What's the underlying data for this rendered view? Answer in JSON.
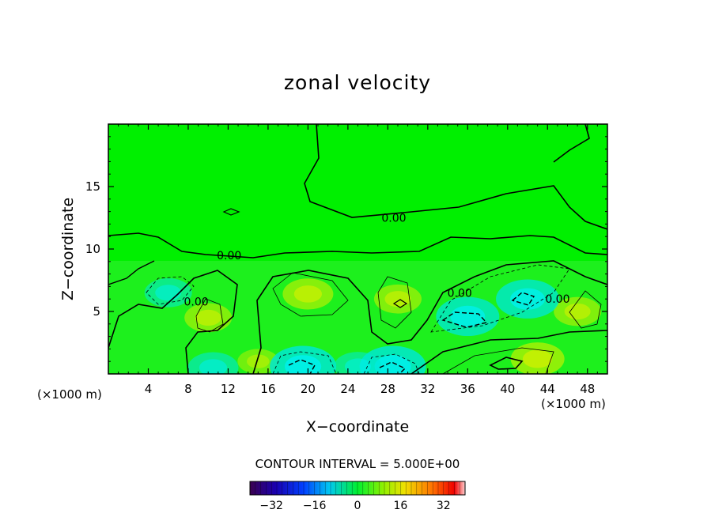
{
  "chart_data": {
    "type": "heatmap",
    "title": "zonal velocity",
    "xlabel": "X−coordinate",
    "ylabel": "Z−coordinate",
    "x_unit_left": "(×1000 m)",
    "x_unit_right": "(×1000 m)",
    "xlim": [
      0,
      50
    ],
    "ylim": [
      0,
      20
    ],
    "x_ticks": [
      4,
      8,
      12,
      16,
      20,
      24,
      28,
      32,
      36,
      40,
      44,
      48
    ],
    "y_ticks": [
      5,
      10,
      15
    ],
    "contour_interval_label": "CONTOUR INTERVAL = 5.000E+00",
    "contour_labels": [
      {
        "text": "0.00",
        "x": 28.6,
        "y": 12.5
      },
      {
        "text": "0.00",
        "x": 12.1,
        "y": 9.5
      },
      {
        "text": "0.00",
        "x": 8.8,
        "y": 5.8
      },
      {
        "text": "0.00",
        "x": 35.2,
        "y": 6.5
      },
      {
        "text": "0.00",
        "x": 45.0,
        "y": 6.0
      }
    ],
    "colorbar": {
      "range": [
        -40,
        40
      ],
      "tick_labels": [
        "−32",
        "−16",
        "0",
        "16",
        "32"
      ],
      "tick_values": [
        -32,
        -16,
        0,
        16,
        32
      ]
    },
    "features": [
      {
        "kind": "positive",
        "x": 20,
        "y": 6.4,
        "value": 6
      },
      {
        "kind": "positive",
        "x": 10,
        "y": 4.5,
        "value": 5
      },
      {
        "kind": "positive",
        "x": 29,
        "y": 6.0,
        "value": 5
      },
      {
        "kind": "positive",
        "x": 47,
        "y": 5.0,
        "value": 5
      },
      {
        "kind": "positive",
        "x": 43,
        "y": 1.2,
        "value": 7
      },
      {
        "kind": "positive",
        "x": 15,
        "y": 1.0,
        "value": 3
      },
      {
        "kind": "negative",
        "x": 6,
        "y": 6.5,
        "value": -5
      },
      {
        "kind": "negative",
        "x": 36,
        "y": 4.6,
        "value": -10
      },
      {
        "kind": "negative",
        "x": 42,
        "y": 6.0,
        "value": -10
      },
      {
        "kind": "negative",
        "x": 19.5,
        "y": 0.6,
        "value": -11
      },
      {
        "kind": "negative",
        "x": 28.5,
        "y": 0.6,
        "value": -11
      },
      {
        "kind": "negative",
        "x": 10.5,
        "y": 0.5,
        "value": -6
      },
      {
        "kind": "negative",
        "x": 25,
        "y": 0.6,
        "value": -5
      }
    ]
  }
}
